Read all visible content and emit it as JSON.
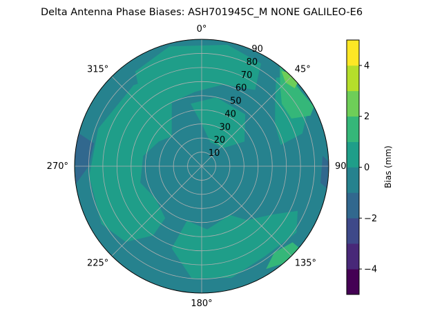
{
  "chart_data": {
    "type": "polar_contour",
    "title": "Delta Antenna Phase Biases: ASH701945C_M    NONE GALILEO-E6",
    "azimuth_labels": [
      {
        "az": 0,
        "text": "0°"
      },
      {
        "az": 45,
        "text": "45°"
      },
      {
        "az": 90,
        "text": "90"
      },
      {
        "az": 135,
        "text": "135°"
      },
      {
        "az": 180,
        "text": "180°"
      },
      {
        "az": 225,
        "text": "225°"
      },
      {
        "az": 270,
        "text": "270°"
      },
      {
        "az": 315,
        "text": "315°"
      }
    ],
    "radial_ticks": [
      10,
      20,
      30,
      40,
      50,
      60,
      70,
      80,
      90
    ],
    "radial_range": [
      0,
      90
    ],
    "angular_grid_deg": [
      0,
      45,
      90,
      135,
      180,
      225,
      270,
      315
    ],
    "grid": true,
    "colorbar": {
      "label": "Bias (mm)",
      "range": [
        -5,
        5
      ],
      "levels": [
        -5,
        -4,
        -3,
        -2,
        -1,
        0,
        1,
        2,
        3,
        4,
        5
      ],
      "tick_labels": [
        {
          "v": -4,
          "t": "−4"
        },
        {
          "v": -2,
          "t": "−2"
        },
        {
          "v": 0,
          "t": "0"
        },
        {
          "v": 2,
          "t": "2"
        },
        {
          "v": 4,
          "t": "4"
        }
      ],
      "colors": [
        "#440154",
        "#482878",
        "#3e4989",
        "#31688e",
        "#26828e",
        "#1f9e89",
        "#35b779",
        "#6ece58",
        "#b5de2b",
        "#fde725"
      ]
    },
    "background_level_color": "#26828e",
    "regions": [
      {
        "level": [
          -2,
          -1
        ],
        "color": "#31688e",
        "points": [
          [
            262,
            90
          ],
          [
            270,
            80
          ],
          [
            282,
            78
          ],
          [
            285,
            90
          ],
          [
            275,
            90
          ]
        ]
      },
      {
        "level": [
          -2,
          -1
        ],
        "color": "#31688e",
        "points": [
          [
            100,
            90
          ],
          [
            98,
            85
          ],
          [
            85,
            86
          ],
          [
            88,
            90
          ]
        ]
      },
      {
        "level": [
          1,
          2
        ],
        "color": "#1f9e89",
        "points": [
          [
            335,
            50
          ],
          [
            355,
            53
          ],
          [
            15,
            60
          ],
          [
            35,
            66
          ],
          [
            30,
            84
          ],
          [
            12,
            88
          ],
          [
            345,
            88
          ],
          [
            325,
            82
          ],
          [
            320,
            68
          ]
        ]
      },
      {
        "level": [
          1,
          2
        ],
        "color": "#1f9e89",
        "points": [
          [
            0,
            30
          ],
          [
            20,
            18
          ],
          [
            50,
            20
          ],
          [
            60,
            35
          ],
          [
            40,
            48
          ],
          [
            12,
            50
          ],
          [
            350,
            45
          ]
        ]
      },
      {
        "level": [
          1,
          2
        ],
        "color": "#1f9e89",
        "points": [
          [
            315,
            30
          ],
          [
            335,
            50
          ],
          [
            350,
            60
          ],
          [
            345,
            70
          ],
          [
            320,
            75
          ],
          [
            290,
            78
          ],
          [
            265,
            80
          ],
          [
            240,
            82
          ],
          [
            225,
            76
          ],
          [
            215,
            60
          ],
          [
            215,
            45
          ],
          [
            235,
            40
          ],
          [
            255,
            45
          ],
          [
            280,
            42
          ],
          [
            300,
            35
          ]
        ]
      },
      {
        "level": [
          1,
          2
        ],
        "color": "#1f9e89",
        "points": [
          [
            150,
            40
          ],
          [
            175,
            45
          ],
          [
            195,
            40
          ],
          [
            200,
            62
          ],
          [
            185,
            80
          ],
          [
            165,
            82
          ],
          [
            145,
            78
          ],
          [
            125,
            82
          ],
          [
            115,
            75
          ],
          [
            125,
            60
          ],
          [
            140,
            50
          ]
        ]
      },
      {
        "level": [
          1,
          2
        ],
        "color": "#1f9e89",
        "points": [
          [
            40,
            82
          ],
          [
            48,
            70
          ],
          [
            60,
            60
          ],
          [
            75,
            58
          ],
          [
            72,
            75
          ],
          [
            60,
            88
          ],
          [
            45,
            90
          ]
        ]
      },
      {
        "level": [
          2,
          3
        ],
        "color": "#35b779",
        "points": [
          [
            38,
            90
          ],
          [
            44,
            80
          ],
          [
            52,
            72
          ],
          [
            62,
            72
          ],
          [
            65,
            85
          ],
          [
            62,
            90
          ]
        ]
      },
      {
        "level": [
          2,
          3
        ],
        "color": "#35b779",
        "points": [
          [
            130,
            84
          ],
          [
            140,
            80
          ],
          [
            148,
            86
          ],
          [
            140,
            90
          ],
          [
            130,
            90
          ]
        ]
      },
      {
        "level": [
          3,
          4
        ],
        "color": "#6ece58",
        "points": [
          [
            40,
            88
          ],
          [
            45,
            84
          ],
          [
            50,
            86
          ],
          [
            49,
            90
          ],
          [
            42,
            90
          ]
        ]
      }
    ]
  }
}
